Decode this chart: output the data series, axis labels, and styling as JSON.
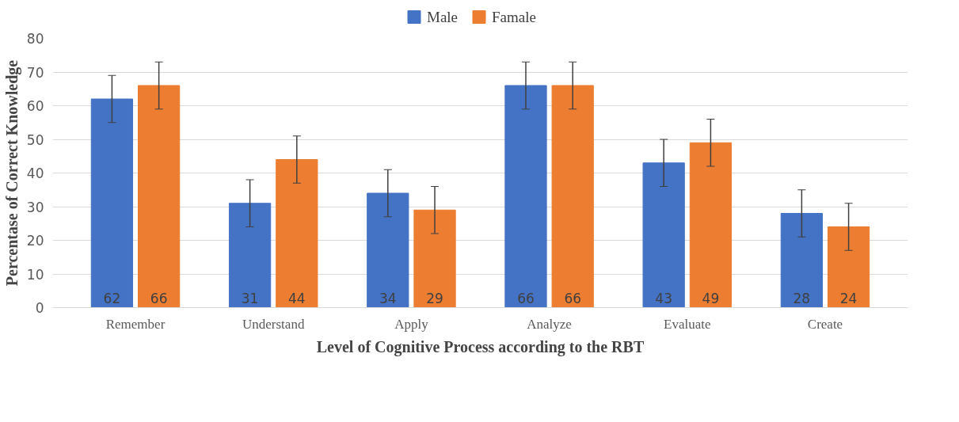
{
  "chart_data": {
    "type": "bar",
    "xlabel": "Level of Cognitive Process according to the RBT",
    "ylabel": "Percentase of Correct Knowledge",
    "categories": [
      "Remember",
      "Understand",
      "Apply",
      "Analyze",
      "Evaluate",
      "Create"
    ],
    "series": [
      {
        "name": "Male",
        "color": "#4472c4",
        "values": [
          62,
          31,
          34,
          66,
          43,
          28
        ],
        "errors": [
          7,
          7,
          7,
          7,
          7,
          7
        ]
      },
      {
        "name": "Famale",
        "color": "#ed7d31",
        "values": [
          66,
          44,
          29,
          66,
          49,
          24
        ],
        "errors": [
          7,
          7,
          7,
          7,
          7,
          7
        ]
      }
    ],
    "ylim": [
      0,
      80
    ],
    "yticks": [
      0,
      10,
      20,
      30,
      40,
      50,
      60,
      70,
      80
    ],
    "grid": "y",
    "legend": "top",
    "data_labels": true
  }
}
